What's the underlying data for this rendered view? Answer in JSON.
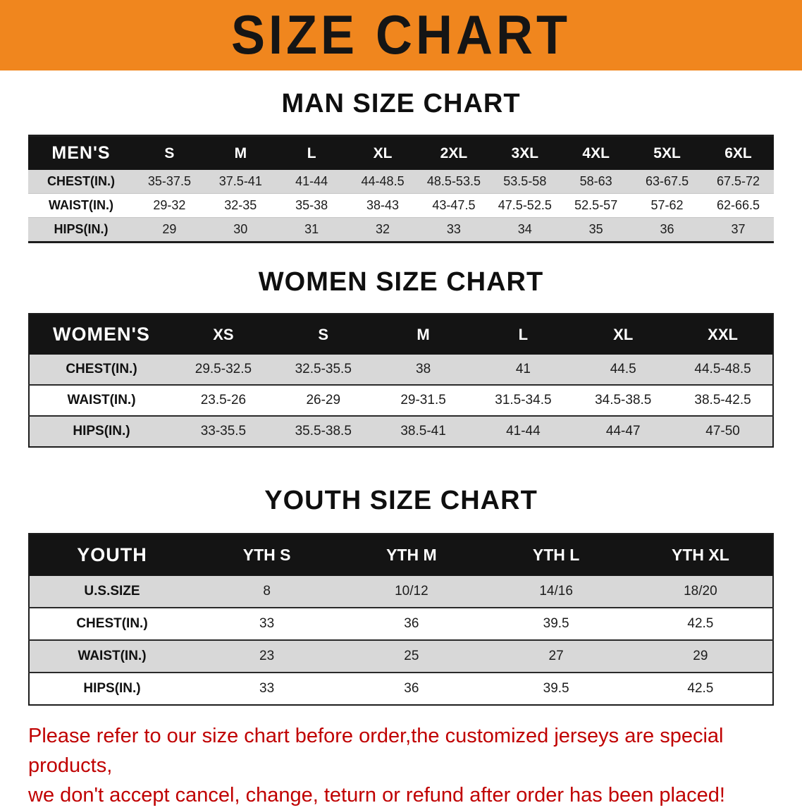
{
  "banner": {
    "title": "SIZE CHART",
    "background_color": "#F0861E",
    "text_color": "#151515"
  },
  "sections": [
    {
      "heading": "MAN SIZE CHART",
      "table": {
        "label": "MEN'S",
        "columns": [
          "S",
          "M",
          "L",
          "XL",
          "2XL",
          "3XL",
          "4XL",
          "5XL",
          "6XL"
        ],
        "rows": [
          {
            "label": "CHEST(IN.)",
            "values": [
              "35-37.5",
              "37.5-41",
              "41-44",
              "44-48.5",
              "48.5-53.5",
              "53.5-58",
              "58-63",
              "63-67.5",
              "67.5-72"
            ]
          },
          {
            "label": "WAIST(IN.)",
            "values": [
              "29-32",
              "32-35",
              "35-38",
              "38-43",
              "43-47.5",
              "47.5-52.5",
              "52.5-57",
              "57-62",
              "62-66.5"
            ]
          },
          {
            "label": "HIPS(IN.)",
            "values": [
              "29",
              "30",
              "31",
              "32",
              "33",
              "34",
              "35",
              "36",
              "37"
            ]
          }
        ]
      }
    },
    {
      "heading": "WOMEN SIZE CHART",
      "table": {
        "label": "WOMEN'S",
        "columns": [
          "XS",
          "S",
          "M",
          "L",
          "XL",
          "XXL"
        ],
        "rows": [
          {
            "label": "CHEST(IN.)",
            "values": [
              "29.5-32.5",
              "32.5-35.5",
              "38",
              "41",
              "44.5",
              "44.5-48.5"
            ]
          },
          {
            "label": "WAIST(IN.)",
            "values": [
              "23.5-26",
              "26-29",
              "29-31.5",
              "31.5-34.5",
              "34.5-38.5",
              "38.5-42.5"
            ]
          },
          {
            "label": "HIPS(IN.)",
            "values": [
              "33-35.5",
              "35.5-38.5",
              "38.5-41",
              "41-44",
              "44-47",
              "47-50"
            ]
          }
        ]
      }
    },
    {
      "heading": "YOUTH SIZE CHART",
      "table": {
        "label": "YOUTH",
        "columns": [
          "YTH S",
          "YTH M",
          "YTH L",
          "YTH XL"
        ],
        "rows": [
          {
            "label": "U.S.SIZE",
            "values": [
              "8",
              "10/12",
              "14/16",
              "18/20"
            ]
          },
          {
            "label": "CHEST(IN.)",
            "values": [
              "33",
              "36",
              "39.5",
              "42.5"
            ]
          },
          {
            "label": "WAIST(IN.)",
            "values": [
              "23",
              "25",
              "27",
              "29"
            ]
          },
          {
            "label": "HIPS(IN.)",
            "values": [
              "33",
              "36",
              "39.5",
              "42.5"
            ]
          }
        ]
      }
    }
  ],
  "disclaimer": {
    "lines": [
      "Please refer to our size chart before order,the customized jerseys are special products,",
      "we don't accept cancel, change, teturn or refund after order has been placed!"
    ],
    "color": "#C00000"
  },
  "colors": {
    "banner_orange": "#F0861E",
    "table_header_black": "#141414",
    "row_stripe_gray": "#D8D8D8",
    "disclaimer_red": "#C00000"
  }
}
